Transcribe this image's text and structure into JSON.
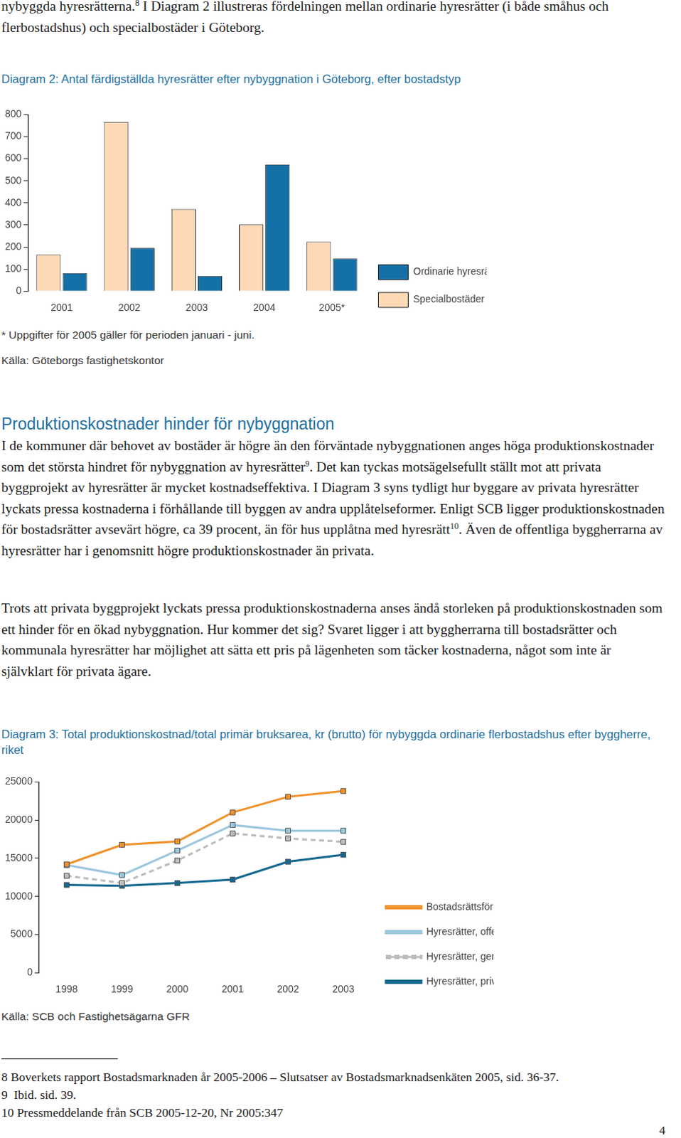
{
  "document": {
    "intro": [
      "nybyggda hyresrätterna.",
      {
        "sup": "8"
      },
      " I Diagram 2 illustreras fördelningen mellan ordinarie hyresrätter (i både småhus och flerbostadshus) och specialbostäder i Göteborg."
    ],
    "heading": "Produktionskostnader hinder för nybyggnation",
    "paragraphs": [
      [
        "I de kommuner där behovet av bostäder är högre än den förväntade nybyggnationen anges höga produktionskostnader som det största hindret för nybyggnation av hyresrätter",
        {
          "sup": "9"
        },
        ". Det kan tyckas motsägelsefullt ställt mot att privata byggprojekt av hyresrätter är mycket kostnadseffektiva. I Diagram 3 syns tydligt hur byggare av privata hyresrätter lyckats pressa kostnaderna i förhållande till byggen av andra upplåtelseformer. Enligt SCB ligger produktionskostnaden för bostadsrätter avsevärt högre, ca 39 procent, än för hus upplåtna med hyresrätt",
        {
          "sup": "10"
        },
        ". Även de offentliga byggherrarna av hyresrätter har i genomsnitt högre produktionskostnader än privata."
      ],
      [
        "Trots att privata byggprojekt lyckats pressa produktionskostnaderna anses ändå storleken på produktionskostnaden som ett hinder för en ökad nybyggnation. Hur kommer det sig? Svaret ligger i att byggherrarna till bostadsrätter och kommunala hyresrätter har möjlighet att sätta ett pris på lägenheten som täcker kostnaderna, något som inte är självklart för privata ägare."
      ]
    ],
    "footnotes": [
      "8 Boverkets rapport Bostadsmarknaden år 2005-2006 – Slutsatser av Bostadsmarknadsenkäten 2005, sid. 36-37.",
      "9  Ibid. sid. 39.",
      "10 Pressmeddelande från SCB 2005-12-20, Nr 2005:347"
    ],
    "page_number": "4"
  },
  "chart_data": [
    {
      "type": "bar",
      "title": "Diagram 2: Antal färdigställda hyresrätter efter nybyggnation i Göteborg, efter bostadstyp",
      "categories": [
        "2001",
        "2002",
        "2003",
        "2004",
        "2005*"
      ],
      "series": [
        {
          "name": "Specialbostäder",
          "color": "#fdd9b6",
          "values": [
            166,
            767,
            372,
            302,
            224
          ]
        },
        {
          "name": "Ordinarie hyresrätter",
          "color": "#1470a6",
          "values": [
            82,
            196,
            69,
            574,
            148
          ]
        }
      ],
      "ylim": [
        0,
        800
      ],
      "yticks": [
        0,
        100,
        200,
        300,
        400,
        500,
        600,
        700,
        800
      ],
      "grid": false,
      "legend": "right",
      "note": "* Uppgifter för 2005 gäller för perioden januari - juni.",
      "source": "Källa: Göteborgs fastighetskontor"
    },
    {
      "type": "line",
      "title": "Diagram 3: Total produktionskostnad/total primär bruksarea, kr (brutto) för nybyggda ordinarie flerbostadshus efter byggherre, riket",
      "categories": [
        "1998",
        "1999",
        "2000",
        "2001",
        "2002",
        "2003"
      ],
      "series": [
        {
          "name": "Bostadsrättsföreningar",
          "color": "#f0922b",
          "marker": "square",
          "line_style": "solid",
          "values": [
            14200,
            16750,
            17200,
            21000,
            23050,
            23800
          ]
        },
        {
          "name": "Hyresrätter, offentliga",
          "color": "#9cc7de",
          "marker": "square",
          "line_style": "solid",
          "values": [
            14100,
            12800,
            16000,
            19350,
            18600,
            18600
          ]
        },
        {
          "name": "Hyresrätter, genomsnitt",
          "color": "#bcbcbc",
          "marker": "square",
          "line_style": "dashed",
          "values": [
            12700,
            11750,
            14700,
            18250,
            17600,
            17150
          ]
        },
        {
          "name": "Hyresrätter, privata",
          "color": "#15698f",
          "marker": "square",
          "line_style": "solid",
          "values": [
            11500,
            11400,
            11750,
            12200,
            14550,
            15450
          ]
        }
      ],
      "ylim": [
        0,
        25000
      ],
      "yticks": [
        0,
        5000,
        10000,
        15000,
        20000,
        25000
      ],
      "grid": false,
      "legend": "right",
      "source": "Källa: SCB och Fastighetsägarna GFR"
    }
  ]
}
